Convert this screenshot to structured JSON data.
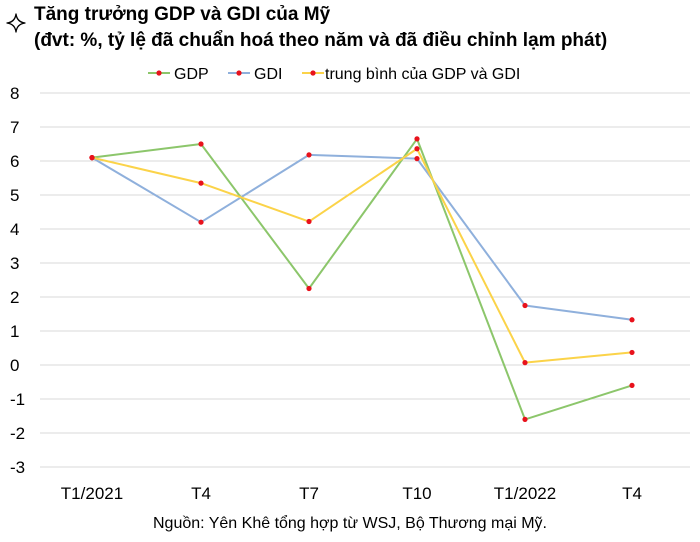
{
  "title_line1": "Tăng trưởng GDP và GDI của Mỹ",
  "title_line2": "(đvt: %, tỷ lệ đã chuẩn hoá theo năm và đã điều chỉnh lạm phát)",
  "icon": "sparkle-icon",
  "source": "Nguồn: Yên Khê tổng hợp từ WSJ, Bộ Thương mại Mỹ.",
  "chart_data": {
    "type": "line",
    "title": "Tăng trưởng GDP và GDI của Mỹ",
    "subtitle": "(đvt: %, tỷ lệ đã chuẩn hoá theo năm và đã điều chỉnh lạm phát)",
    "categories": [
      "T1/2021",
      "T4",
      "T7",
      "T10",
      "T1/2022",
      "T4"
    ],
    "ylim": [
      -3,
      8
    ],
    "yticks": [
      8,
      7,
      6,
      5,
      4,
      3,
      2,
      1,
      0,
      -1,
      -2,
      -3
    ],
    "grid": true,
    "legend": "top",
    "marker_color": "#e8121c",
    "series": [
      {
        "name": "GDP",
        "color": "#8cc66b",
        "values": [
          6.1,
          6.5,
          2.25,
          6.65,
          -1.6,
          -0.6
        ]
      },
      {
        "name": "GDI",
        "color": "#8fb0dc",
        "values": [
          6.1,
          4.2,
          6.18,
          6.07,
          1.75,
          1.33
        ]
      },
      {
        "name": "trung bình của GDP và GDI",
        "color": "#fbd349",
        "values": [
          6.1,
          5.35,
          4.22,
          6.36,
          0.07,
          0.37
        ]
      }
    ]
  }
}
